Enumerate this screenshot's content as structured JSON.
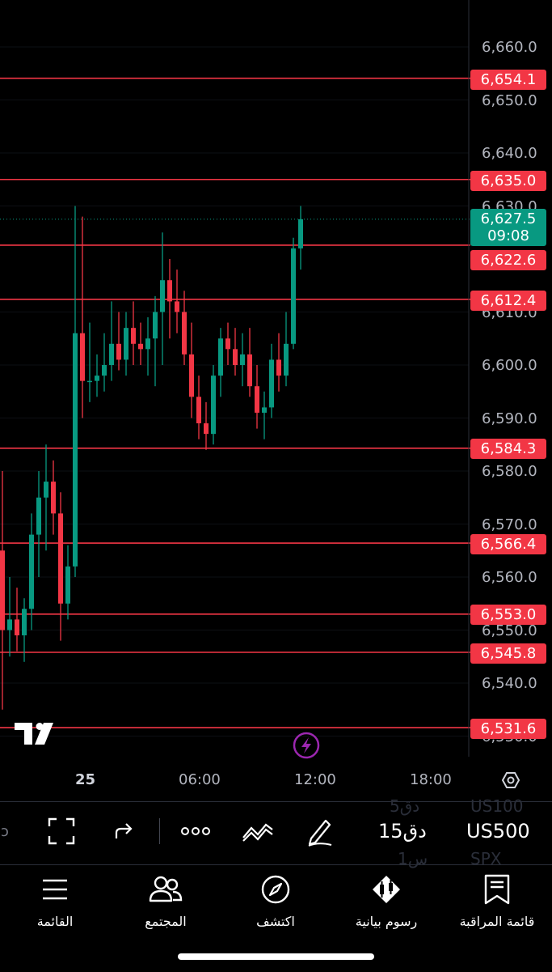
{
  "chart_data": {
    "type": "candlestick",
    "symbol": "US500",
    "interval": "15دق",
    "y_axis_ticks": [
      "6,660.0",
      "6,650.0",
      "6,640.0",
      "6,630.0",
      "6,610.0",
      "6,600.0",
      "6,590.0",
      "6,580.0",
      "6,570.0",
      "6,560.0",
      "6,550.0",
      "6,540.0",
      "6,530.0"
    ],
    "y_tick_values": [
      6660,
      6650,
      6640,
      6630,
      6610,
      6600,
      6590,
      6580,
      6570,
      6560,
      6550,
      6540,
      6530
    ],
    "x_axis_ticks": [
      "25",
      "06:00",
      "12:00",
      "18:00"
    ],
    "horizontal_lines": [
      {
        "label": "6,654.1",
        "value": 6654.1
      },
      {
        "label": "6,635.0",
        "value": 6635.0
      },
      {
        "label": "6,622.6",
        "value": 6622.6
      },
      {
        "label": "6,612.4",
        "value": 6612.4
      },
      {
        "label": "6,584.3",
        "value": 6584.3
      },
      {
        "label": "6,566.4",
        "value": 6566.4
      },
      {
        "label": "6,553.0",
        "value": 6553.0
      },
      {
        "label": "6,545.8",
        "value": 6545.8
      },
      {
        "label": "6,531.6",
        "value": 6531.6
      }
    ],
    "last_price": {
      "label": "6,627.5",
      "value": 6627.5,
      "countdown": "09:08"
    },
    "candles": [
      [
        6565,
        6580,
        6535,
        6550
      ],
      [
        6550,
        6560,
        6545,
        6552
      ],
      [
        6552,
        6558,
        6546,
        6549
      ],
      [
        6549,
        6556,
        6544,
        6554
      ],
      [
        6554,
        6572,
        6550,
        6568
      ],
      [
        6568,
        6580,
        6560,
        6575
      ],
      [
        6575,
        6585,
        6565,
        6578
      ],
      [
        6578,
        6582,
        6568,
        6572
      ],
      [
        6572,
        6576,
        6548,
        6555
      ],
      [
        6555,
        6566,
        6552,
        6562
      ],
      [
        6562,
        6630,
        6560,
        6606
      ],
      [
        6606,
        6628,
        6590,
        6597
      ],
      [
        6597,
        6608,
        6593,
        6597
      ],
      [
        6597,
        6602,
        6594,
        6598
      ],
      [
        6598,
        6606,
        6595,
        6600
      ],
      [
        6600,
        6612,
        6597,
        6604
      ],
      [
        6604,
        6610,
        6599,
        6601
      ],
      [
        6601,
        6610,
        6598,
        6607
      ],
      [
        6607,
        6612,
        6600,
        6604
      ],
      [
        6604,
        6608,
        6600,
        6603
      ],
      [
        6603,
        6609,
        6598,
        6605
      ],
      [
        6605,
        6613,
        6596,
        6610
      ],
      [
        6610,
        6625,
        6600,
        6616
      ],
      [
        6616,
        6620,
        6605,
        6612
      ],
      [
        6612,
        6618,
        6606,
        6610
      ],
      [
        6610,
        6614,
        6600,
        6602
      ],
      [
        6602,
        6608,
        6590,
        6594
      ],
      [
        6594,
        6598,
        6586,
        6589
      ],
      [
        6589,
        6593,
        6584,
        6587
      ],
      [
        6587,
        6600,
        6585,
        6598
      ],
      [
        6598,
        6607,
        6594,
        6605
      ],
      [
        6605,
        6608,
        6600,
        6603
      ],
      [
        6603,
        6607,
        6598,
        6600
      ],
      [
        6600,
        6606,
        6596,
        6602
      ],
      [
        6602,
        6607,
        6594,
        6596
      ],
      [
        6596,
        6600,
        6588,
        6591
      ],
      [
        6591,
        6595,
        6586,
        6592
      ],
      [
        6592,
        6604,
        6590,
        6601
      ],
      [
        6601,
        6606,
        6595,
        6598
      ],
      [
        6598,
        6610,
        6596,
        6604
      ],
      [
        6604,
        6624,
        6603,
        6622
      ],
      [
        6622,
        6630,
        6618,
        6627.5
      ]
    ]
  },
  "toolbar": {
    "symbol": "US500",
    "interval": "15دق",
    "symbol_above": "US100",
    "symbol_below": "SPX",
    "interval_above": "5دق",
    "interval_below": "1س"
  },
  "bottom_nav": {
    "watchlist": "قائمة المراقبة",
    "charts": "رسوم بيانية",
    "explore": "اكتشف",
    "community": "المجتمع",
    "menu": "القائمة"
  }
}
